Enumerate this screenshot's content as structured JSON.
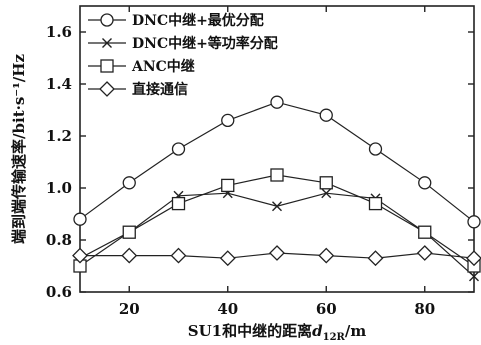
{
  "chart_data": {
    "type": "line",
    "xlabel": "SU1和中继的距离",
    "xlabel_sub": "12R",
    "xlabel_unit": "/m",
    "ylabel": "端到端传输速率/bit·s⁻¹/Hz",
    "xlim": [
      10,
      90
    ],
    "ylim": [
      0.6,
      1.7
    ],
    "xticks": [
      20,
      40,
      60,
      80
    ],
    "yticks": [
      0.6,
      0.8,
      1.0,
      1.2,
      1.4,
      1.6
    ],
    "ytick_labels": [
      "0.6",
      "0.8",
      "1.0",
      "1.2",
      "1.4",
      "1.6"
    ],
    "x": [
      10,
      20,
      30,
      40,
      50,
      60,
      70,
      80,
      90
    ],
    "legend_position": "top-left",
    "grid": false,
    "series": [
      {
        "name": "DNC中继+最优分配",
        "marker": "circle",
        "values": [
          0.88,
          1.02,
          1.15,
          1.26,
          1.33,
          1.28,
          1.15,
          1.02,
          0.87
        ]
      },
      {
        "name": "DNC中继+等功率分配",
        "marker": "x",
        "values": [
          0.73,
          0.83,
          0.97,
          0.98,
          0.93,
          0.98,
          0.96,
          0.83,
          0.66
        ]
      },
      {
        "name": "ANC中继",
        "marker": "square",
        "values": [
          0.7,
          0.83,
          0.94,
          1.01,
          1.05,
          1.02,
          0.94,
          0.83,
          0.7
        ]
      },
      {
        "name": "直接通信",
        "marker": "diamond",
        "values": [
          0.74,
          0.74,
          0.74,
          0.73,
          0.75,
          0.74,
          0.73,
          0.75,
          0.73
        ]
      }
    ]
  }
}
